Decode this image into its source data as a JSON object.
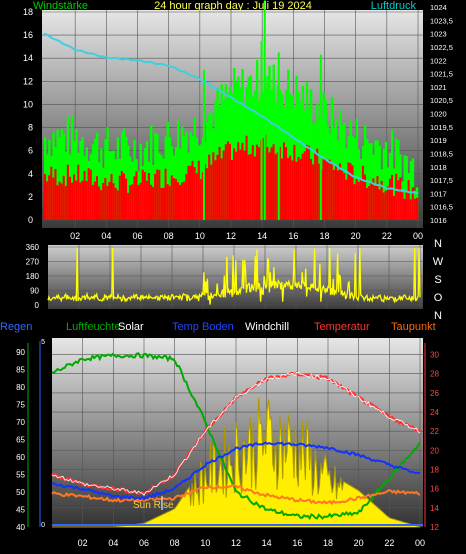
{
  "panel1": {
    "title": "24 hour graph day : Juli 19 2024",
    "left_label": "Windstärke",
    "right_label": "Luftdruck",
    "colors": {
      "title": "#ffff55",
      "left_label": "#00cc00",
      "right_label": "#00cccc",
      "wind_gust": "#00ff00",
      "wind_avg": "#ff0000",
      "pressure": "#3ecfdf",
      "text": "#ffffff"
    },
    "x_ticks": [
      "02",
      "04",
      "06",
      "08",
      "10",
      "12",
      "14",
      "16",
      "18",
      "20",
      "22",
      "00"
    ],
    "y_left_ticks": [
      "0",
      "2",
      "4",
      "6",
      "8",
      "10",
      "12",
      "14",
      "16",
      "18"
    ],
    "y_right_ticks": [
      "1016",
      "1016,5",
      "1017",
      "1017,5",
      "1018",
      "1018,5",
      "1019",
      "1019,5",
      "1020",
      "1020,5",
      "1021",
      "1021,5",
      "1022",
      "1022,5",
      "1023",
      "1023,5",
      "1024"
    ]
  },
  "panel2": {
    "y_ticks": [
      "0",
      "90",
      "180",
      "270",
      "360"
    ],
    "compass": [
      "N",
      "W",
      "S",
      "O",
      "N"
    ],
    "colors": {
      "direction": "#ffff00",
      "compass": "#ffffff"
    }
  },
  "panel3": {
    "header": [
      {
        "key": "regen",
        "label": "Regen",
        "color": "#3366ff"
      },
      {
        "key": "luftfeuchte",
        "label": "Luftfeuchte",
        "color": "#00aa00"
      },
      {
        "key": "solar",
        "label": "Solar",
        "color": "#ffffff"
      },
      {
        "key": "temp_boden",
        "label": "Temp Boden",
        "color": "#2244ff"
      },
      {
        "key": "windchill",
        "label": "Windchill",
        "color": "#ffffff"
      },
      {
        "key": "temperatur",
        "label": "Temperatur",
        "color": "#ff3333"
      },
      {
        "key": "taupunkt",
        "label": "Taupunkt",
        "color": "#ff6600"
      }
    ],
    "sunrise_label": "Sun Rise",
    "x_ticks": [
      "02",
      "04",
      "06",
      "08",
      "10",
      "12",
      "14",
      "16",
      "18",
      "20",
      "22",
      "00"
    ],
    "y_left_humidity_ticks": [
      "40",
      "45",
      "50",
      "55",
      "60",
      "65",
      "70",
      "75",
      "80",
      "85",
      "90"
    ],
    "y_rain_ticks": [
      "0",
      "5"
    ],
    "y_right_ticks": [
      "12",
      "14",
      "16",
      "18",
      "20",
      "22",
      "24",
      "26",
      "28",
      "30"
    ]
  },
  "chart_data": [
    {
      "type": "line",
      "title": "24 hour graph day : Juli 19 2024",
      "x": [
        "00",
        "02",
        "04",
        "06",
        "08",
        "10",
        "12",
        "14",
        "16",
        "18",
        "20",
        "22",
        "00"
      ],
      "ylabel": "Windstärke",
      "ylabel_right": "Luftdruck",
      "ylim": [
        0,
        19
      ],
      "ylim_right": [
        1016,
        1024
      ],
      "series": [
        {
          "name": "Windstärke",
          "values": [
            7,
            7,
            6,
            6,
            7,
            8,
            11,
            12,
            11,
            9,
            7,
            6,
            4
          ]
        },
        {
          "name": "Luftdruck",
          "values": [
            1023.0,
            1022.4,
            1022.1,
            1022.0,
            1021.8,
            1021.3,
            1020.6,
            1019.9,
            1019.1,
            1018.3,
            1017.6,
            1017.2,
            1017.0
          ]
        }
      ]
    },
    {
      "type": "line",
      "x": [
        "00",
        "02",
        "04",
        "06",
        "08",
        "10",
        "12",
        "14",
        "16",
        "18",
        "20",
        "22",
        "00"
      ],
      "ylim": [
        0,
        360
      ],
      "series": [
        {
          "name": "",
          "values": [
            60,
            58,
            55,
            60,
            60,
            62,
            100,
            170,
            160,
            120,
            60,
            55,
            60
          ]
        }
      ]
    },
    {
      "type": "line",
      "x": [
        "00",
        "02",
        "04",
        "06",
        "08",
        "10",
        "12",
        "14",
        "16",
        "18",
        "20",
        "22",
        "00"
      ],
      "ylim_humidity": [
        40,
        92
      ],
      "ylim_temperature": [
        12,
        31
      ],
      "series": [
        {
          "name": "Luftfeuchte",
          "values": [
            84,
            88,
            89,
            89,
            88,
            70,
            50,
            45,
            43,
            43,
            44,
            54,
            64
          ]
        },
        {
          "name": "Temperatur",
          "values": [
            17.5,
            16.5,
            16.0,
            15.5,
            17.5,
            22.0,
            25.5,
            27.5,
            28.0,
            27.5,
            25.5,
            23.5,
            22.0
          ]
        },
        {
          "name": "Temp Boden",
          "values": [
            16.5,
            16.0,
            15.2,
            15.0,
            16.0,
            18.5,
            20.2,
            20.8,
            20.6,
            20.3,
            19.5,
            18.5,
            17.5
          ]
        },
        {
          "name": "Taupunkt",
          "values": [
            15.5,
            15.2,
            14.8,
            14.8,
            15.0,
            16.2,
            16.2,
            15.3,
            14.8,
            14.5,
            15.0,
            15.7,
            15.5
          ]
        },
        {
          "name": "Solar",
          "values": [
            0,
            0,
            0,
            2,
            10,
            35,
            50,
            60,
            55,
            30,
            20,
            5,
            0
          ]
        },
        {
          "name": "Regen",
          "values": [
            0,
            0,
            0,
            0,
            0,
            0,
            0,
            0,
            0,
            0,
            0,
            0,
            0
          ]
        }
      ]
    }
  ]
}
